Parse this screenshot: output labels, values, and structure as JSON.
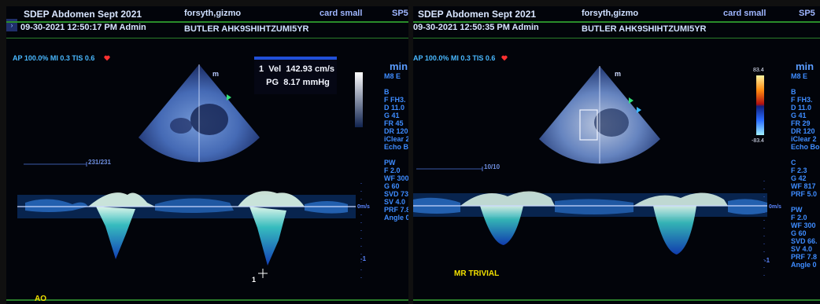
{
  "left": {
    "title": "SDEP Abdomen Sept 2021",
    "datetime": "09-30-2021 12:50:17 PM  Admin",
    "patient_name": "forsyth,gizmo",
    "patient_id": "BUTLER AHK9SHIHTZUMI5YR",
    "preset": "card small",
    "probe": "SP5",
    "ap_line": "AP 100.0%  MI 0.3  TIS 0.6",
    "sweep_label": "231/231",
    "measurement": {
      "index": "1",
      "vel_label": "Vel",
      "vel_value": "142.93 cm/s",
      "pg_label": "PG",
      "pg_value": "8.17 mmHg"
    },
    "side_head": "min",
    "side_lines": [
      "M8 E",
      "",
      "B",
      "F FH3.",
      "D 11.0",
      "G 41",
      "FR 45",
      "DR 120",
      "iClear 2",
      "Echo Bo",
      "",
      "PW",
      "F 2.0",
      "WF 300",
      "G 60",
      "SVD 73.",
      "SV 4.0",
      "PRF 7.8",
      "Angle 0"
    ],
    "baseline_label": "0m/s",
    "scale_label": "-1",
    "cursor_label": "1",
    "bottom_label": "AO"
  },
  "right": {
    "title": "SDEP Abdomen Sept 2021",
    "datetime": "09-30-2021 12:50:35 PM  Admin",
    "patient_name": "forsyth,gizmo",
    "patient_id": "BUTLER AHK9SHIHTZUMI5YR",
    "preset": "card small",
    "probe": "SP5",
    "ap_line": "AP 100.0%  MI 0.3  TIS 0.6",
    "sweep_label": "10/10",
    "color_scale_top": "83.4",
    "color_scale_bottom": "-83.4",
    "side_head": "min",
    "side_lines": [
      "M8 E",
      "",
      "B",
      "F FH3.",
      "D 11.0",
      "G 41",
      "FR 29",
      "DR 120",
      "iClear 2",
      "Echo Bo",
      "",
      "C",
      "F 2.3",
      "G 42",
      "WF 817",
      "PRF 5.0",
      "",
      "PW",
      "F 2.0",
      "WF 300",
      "G 60",
      "SVD 66.",
      "SV 4.0",
      "PRF 7.8",
      "Angle 0"
    ],
    "baseline_label": "0m/s",
    "scale_label": "-1",
    "bottom_label": "MR TRIVIAL"
  },
  "colors": {
    "frame_green": "#2a8c2a",
    "label_blue": "#3e8cff",
    "annotation_yellow": "#f2e000",
    "heart_red": "#ff3030"
  }
}
